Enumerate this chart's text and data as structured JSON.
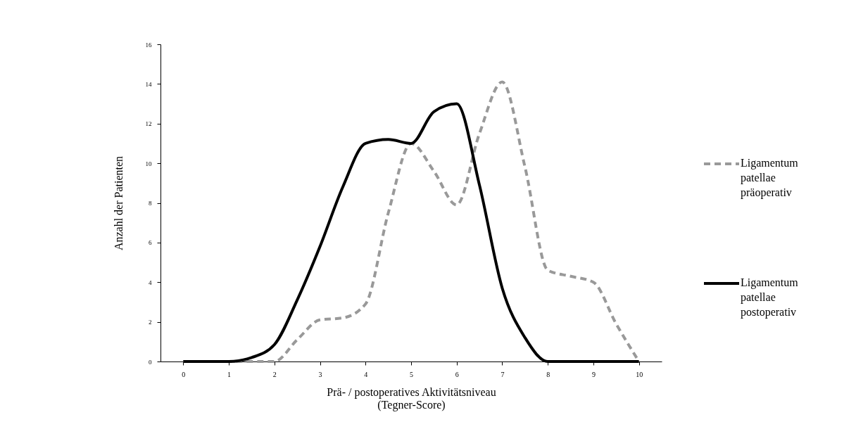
{
  "chart_data": {
    "type": "line",
    "xlabel": "Prä- / postoperatives Aktivitätsniveau\n(Tegner-Score)",
    "ylabel": "Anzahl der Patienten",
    "x": [
      0,
      0.5,
      1,
      1.5,
      2,
      2.5,
      3,
      3.5,
      4,
      4.5,
      5,
      5.5,
      6,
      6.5,
      7,
      7.5,
      8,
      8.5,
      9,
      9.5,
      10
    ],
    "series": [
      {
        "name": "Ligamentum patellae präoperativ",
        "color": "#999999",
        "line_style": "dashed",
        "values": [
          0,
          0,
          0,
          0,
          0,
          1.1,
          2.1,
          2.2,
          2.9,
          7.5,
          11.0,
          9.6,
          7.9,
          11.5,
          14.1,
          9.8,
          4.6,
          4.3,
          4.0,
          1.9,
          0
        ]
      },
      {
        "name": "Ligamentum patellae postoperativ",
        "color": "#000000",
        "line_style": "solid",
        "values": [
          0,
          0,
          0,
          0.2,
          0.85,
          3.1,
          5.8,
          8.8,
          11.0,
          11.2,
          11.0,
          12.6,
          13.0,
          8.9,
          3.7,
          1.2,
          0,
          0,
          0,
          0,
          0
        ]
      }
    ],
    "xlim": [
      -0.5,
      10.5
    ],
    "xticks": [
      0,
      1,
      2,
      3,
      4,
      5,
      6,
      7,
      8,
      9,
      10
    ],
    "ylim": [
      0,
      16
    ],
    "yticks": [
      0,
      2,
      4,
      6,
      8,
      10,
      12,
      14,
      16
    ],
    "grid": false,
    "legend": "right",
    "marker": "none"
  }
}
